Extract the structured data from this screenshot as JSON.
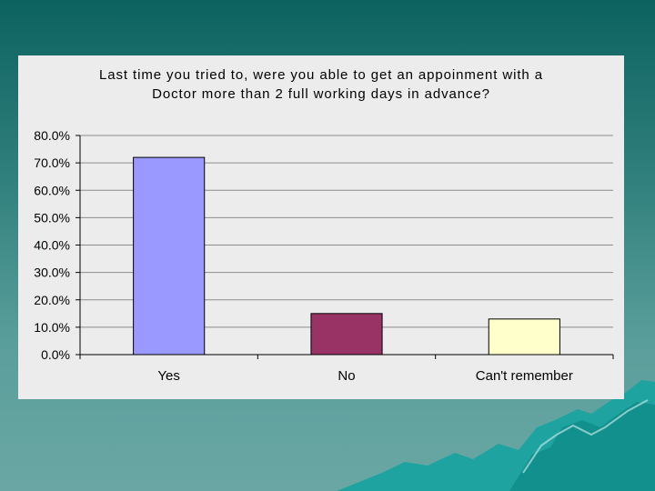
{
  "chart_data": {
    "type": "bar",
    "title": "Last time you tried to, were you able to get an appoinment with a\nDoctor more than 2 full working days in advance?",
    "categories": [
      "Yes",
      "No",
      "Can't remember"
    ],
    "values": [
      72.0,
      15.0,
      13.0
    ],
    "ylim": [
      0,
      80
    ],
    "yticks": [
      "0.0%",
      "10.0%",
      "20.0%",
      "30.0%",
      "40.0%",
      "50.0%",
      "60.0%",
      "70.0%",
      "80.0%"
    ],
    "bar_colors": [
      "#9999ff",
      "#993366",
      "#ffffcc"
    ],
    "grid": true,
    "legend": "none"
  }
}
